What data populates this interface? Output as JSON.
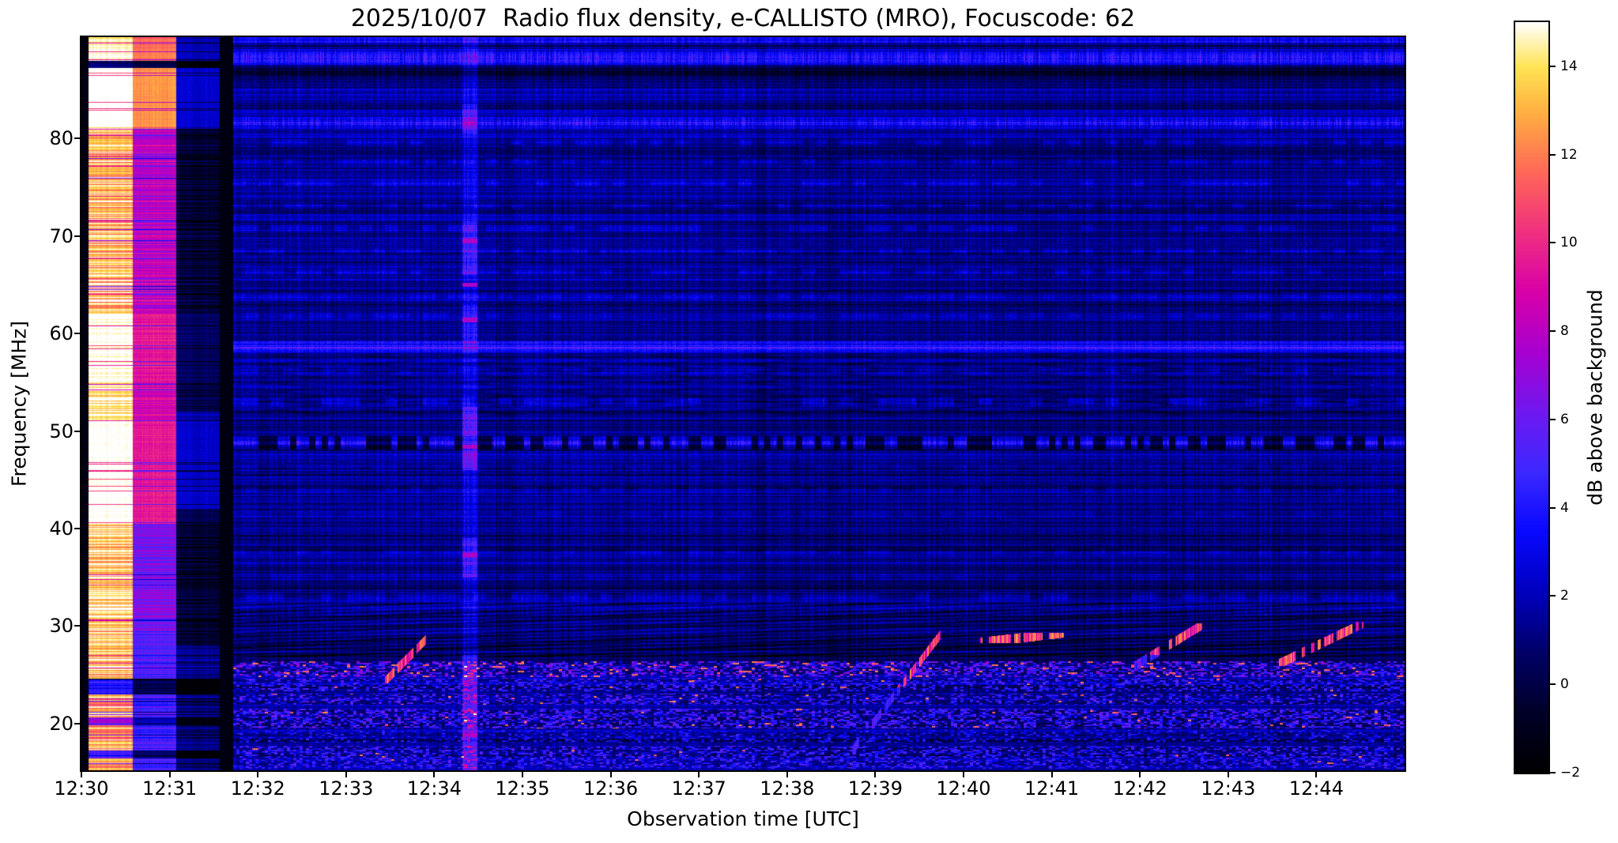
{
  "chart_data": {
    "type": "heatmap",
    "title": "2025/10/07  Radio flux density, e-CALLISTO (MRO), Focuscode: 62",
    "xlabel": "Observation time [UTC]",
    "ylabel": "Frequency [MHz]",
    "x_axis": {
      "start": "12:30",
      "end": "12:45",
      "span_seconds": 900,
      "ticks": [
        {
          "label": "12:30",
          "t": 0
        },
        {
          "label": "12:31",
          "t": 60
        },
        {
          "label": "12:32",
          "t": 120
        },
        {
          "label": "12:33",
          "t": 180
        },
        {
          "label": "12:34",
          "t": 240
        },
        {
          "label": "12:35",
          "t": 300
        },
        {
          "label": "12:36",
          "t": 360
        },
        {
          "label": "12:37",
          "t": 420
        },
        {
          "label": "12:38",
          "t": 480
        },
        {
          "label": "12:39",
          "t": 540
        },
        {
          "label": "12:40",
          "t": 600
        },
        {
          "label": "12:41",
          "t": 660
        },
        {
          "label": "12:42",
          "t": 720
        },
        {
          "label": "12:43",
          "t": 780
        },
        {
          "label": "12:44",
          "t": 840
        }
      ]
    },
    "y_axis": {
      "range": [
        15.2,
        90.4
      ],
      "ticks": [
        80,
        70,
        60,
        50,
        40,
        30,
        20
      ]
    },
    "colorbar": {
      "label": "dB above background",
      "range": [
        -2,
        15
      ],
      "ticks": [
        {
          "v": 14,
          "label": "14"
        },
        {
          "v": 12,
          "label": "12"
        },
        {
          "v": 10,
          "label": "10"
        },
        {
          "v": 8,
          "label": "8"
        },
        {
          "v": 6,
          "label": "6"
        },
        {
          "v": 4,
          "label": "4"
        },
        {
          "v": 2,
          "label": "2"
        },
        {
          "v": 0,
          "label": "0"
        },
        {
          "v": -2,
          "label": "−2"
        }
      ],
      "colormap": "gnuplot2-like",
      "stops": [
        [
          0.0,
          0,
          0,
          0
        ],
        [
          0.08,
          0,
          0,
          40
        ],
        [
          0.16,
          0,
          0,
          105
        ],
        [
          0.24,
          0,
          0,
          190
        ],
        [
          0.32,
          8,
          8,
          255
        ],
        [
          0.4,
          60,
          40,
          255
        ],
        [
          0.48,
          112,
          24,
          240
        ],
        [
          0.56,
          168,
          0,
          208
        ],
        [
          0.64,
          216,
          0,
          168
        ],
        [
          0.72,
          240,
          48,
          128
        ],
        [
          0.8,
          255,
          104,
          88
        ],
        [
          0.88,
          255,
          176,
          64
        ],
        [
          0.94,
          255,
          228,
          85
        ],
        [
          1.0,
          255,
          255,
          255
        ]
      ]
    },
    "render": {
      "data_start_t": 103,
      "cal_columns": {
        "black_left": [
          0,
          5
        ],
        "col1": [
          5,
          35
        ],
        "col2": [
          35,
          64.5
        ],
        "col3": [
          64.5,
          94
        ],
        "black_gap": [
          94,
          103
        ]
      },
      "cal_profile": [
        [
          90.4,
          89.6,
          0.92,
          0.06
        ],
        [
          89.6,
          88.0,
          0.97,
          0.04
        ],
        [
          88.0,
          87.2,
          0.14,
          0.05
        ],
        [
          87.2,
          81.2,
          1.0,
          0.02
        ],
        [
          81.2,
          62.0,
          0.87,
          0.13
        ],
        [
          62.0,
          55.0,
          0.98,
          0.05
        ],
        [
          55.0,
          51.0,
          0.93,
          0.08
        ],
        [
          51.0,
          40.5,
          0.99,
          0.03
        ],
        [
          40.5,
          29.5,
          0.9,
          0.11
        ],
        [
          29.5,
          24.6,
          0.88,
          0.12
        ],
        [
          24.6,
          23.0,
          0.32,
          0.08
        ],
        [
          23.0,
          20.6,
          0.84,
          0.16
        ],
        [
          20.6,
          19.8,
          0.47,
          0.12
        ],
        [
          19.8,
          17.2,
          0.87,
          0.13
        ],
        [
          17.2,
          16.4,
          0.37,
          0.1
        ],
        [
          16.4,
          15.2,
          0.8,
          0.12
        ]
      ],
      "h_lines": [
        {
          "f": 90.1,
          "w": 0.5,
          "amp": 0.1,
          "style": "speckle"
        },
        {
          "f": 88.3,
          "w": 0.9,
          "amp": 0.16,
          "style": "speckle"
        },
        {
          "f": 86.9,
          "w": 0.5,
          "amp": -0.06,
          "style": "plain"
        },
        {
          "f": 84.6,
          "w": 1.2,
          "amp": 0.05,
          "style": "speckle"
        },
        {
          "f": 81.6,
          "w": 0.7,
          "amp": 0.15,
          "style": "speckle"
        },
        {
          "f": 79.6,
          "w": 0.4,
          "amp": 0.07,
          "style": "dash"
        },
        {
          "f": 77.6,
          "w": 0.4,
          "amp": 0.06,
          "style": "dash"
        },
        {
          "f": 75.4,
          "w": 0.4,
          "amp": 0.07,
          "style": "dash"
        },
        {
          "f": 73.1,
          "w": 0.4,
          "amp": 0.06,
          "style": "dash"
        },
        {
          "f": 70.8,
          "w": 0.4,
          "amp": 0.07,
          "style": "dash"
        },
        {
          "f": 68.4,
          "w": 0.4,
          "amp": 0.06,
          "style": "dash"
        },
        {
          "f": 66.3,
          "w": 0.4,
          "amp": 0.07,
          "style": "dash"
        },
        {
          "f": 63.8,
          "w": 0.4,
          "amp": 0.05,
          "style": "dash"
        },
        {
          "f": 61.8,
          "w": 0.4,
          "amp": 0.05,
          "style": "dash"
        },
        {
          "f": 58.6,
          "w": 0.6,
          "amp": 0.22,
          "style": "plain"
        },
        {
          "f": 56.2,
          "w": 0.4,
          "amp": 0.05,
          "style": "dash"
        },
        {
          "f": 53.0,
          "w": 0.5,
          "amp": 0.08,
          "style": "dash"
        },
        {
          "f": 48.8,
          "w": 0.7,
          "amp": 0.17,
          "style": "barcode"
        },
        {
          "f": 46.2,
          "w": 0.4,
          "amp": 0.04,
          "style": "dash"
        },
        {
          "f": 44.0,
          "w": 0.4,
          "amp": 0.05,
          "style": "dash"
        },
        {
          "f": 41.5,
          "w": 0.4,
          "amp": 0.04,
          "style": "dash"
        },
        {
          "f": 37.6,
          "w": 0.4,
          "amp": 0.05,
          "style": "dash"
        },
        {
          "f": 35.0,
          "w": 0.4,
          "amp": 0.04,
          "style": "dash"
        },
        {
          "f": 33.0,
          "w": 0.5,
          "amp": 0.07,
          "style": "dash"
        },
        {
          "f": 31.6,
          "w": 0.5,
          "amp": 0.08,
          "style": "speckle"
        }
      ],
      "speckle_bands": [
        {
          "f": [
            24.8,
            26.4
          ],
          "d": 0.5,
          "lo": 0.26,
          "hi": 0.58,
          "hot": 0.1
        },
        {
          "f": [
            23.3,
            24.7
          ],
          "d": 0.42,
          "lo": 0.24,
          "hi": 0.48,
          "hot": 0.015
        },
        {
          "f": [
            21.9,
            23.1
          ],
          "d": 0.4,
          "lo": 0.24,
          "hi": 0.5,
          "hot": 0.03
        },
        {
          "f": [
            19.5,
            21.5
          ],
          "d": 0.48,
          "lo": 0.26,
          "hi": 0.52,
          "hot": 0.02
        },
        {
          "f": [
            18.0,
            19.3
          ],
          "d": 0.3,
          "lo": 0.22,
          "hi": 0.42,
          "hot": 0.0
        },
        {
          "f": [
            15.4,
            17.7
          ],
          "d": 0.45,
          "lo": 0.24,
          "hi": 0.48,
          "hot": 0.01
        }
      ],
      "scan_stripe": {
        "t": [
          259,
          269
        ],
        "base_amp": 0.09,
        "segments": [
          {
            "f": [
              80.5,
              83.5
            ],
            "amp": 0.1
          },
          {
            "f": [
              66.0,
              71.5
            ],
            "amp": 0.1
          },
          {
            "f": [
              59.0,
              63.0
            ],
            "amp": 0.08
          },
          {
            "f": [
              46.0,
              52.5
            ],
            "amp": 0.17
          },
          {
            "f": [
              35.0,
              39.0
            ],
            "amp": 0.12
          },
          {
            "f": [
              15.2,
              27.0
            ],
            "amp": 0.13
          }
        ],
        "magenta_lines": [
          69.5,
          65.0,
          61.4,
          48.4,
          37.3,
          18.8
        ]
      },
      "diagonal_bursts": [
        {
          "t0": 206,
          "f0": 24.3,
          "t1": 240,
          "f1": 29.5,
          "hf": 0.0
        },
        {
          "t0": 524,
          "f0": 17.2,
          "t1": 584,
          "f1": 29.1,
          "hf": 0.55
        },
        {
          "t0": 611,
          "f0": 28.3,
          "t1": 668,
          "f1": 29.3,
          "hf": 0.0
        },
        {
          "t0": 714,
          "f0": 25.7,
          "t1": 762,
          "f1": 30.1,
          "hf": 0.3
        },
        {
          "t0": 814,
          "f0": 26.1,
          "t1": 872,
          "f1": 30.3,
          "hf": 0.0
        }
      ],
      "boundary_t": 462,
      "waves": {
        "upper_f": [
          51.5,
          58.0
        ],
        "lower_f": [
          26.8,
          32.4
        ]
      }
    }
  }
}
